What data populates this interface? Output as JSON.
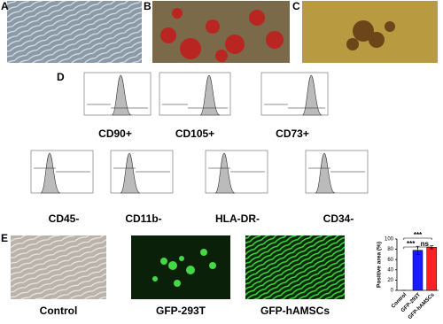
{
  "panels": {
    "a": "A",
    "b": "B",
    "c": "C",
    "d": "D",
    "e": "E"
  },
  "markers": [
    "CD90+",
    "CD105+",
    "CD73+",
    "CD45-",
    "CD11b-",
    "HLA-DR-",
    "CD34-"
  ],
  "images": [
    "Control",
    "GFP-293T",
    "GFP-hAMSCs"
  ],
  "chart_data": {
    "type": "bar",
    "y_label": "Positive area (%)",
    "categories": [
      "Control",
      "GFP-293T",
      "GFP-hAMSCs"
    ],
    "values": [
      0,
      78,
      84
    ],
    "errors": [
      0,
      8,
      3
    ],
    "colors": [
      "#1a1aff",
      "#1a1aff",
      "#ff2020"
    ],
    "ylim": [
      0,
      100
    ],
    "yticks": [
      0,
      20,
      40,
      60,
      80,
      100
    ],
    "annotations": [
      "***",
      "***",
      "ns"
    ]
  }
}
